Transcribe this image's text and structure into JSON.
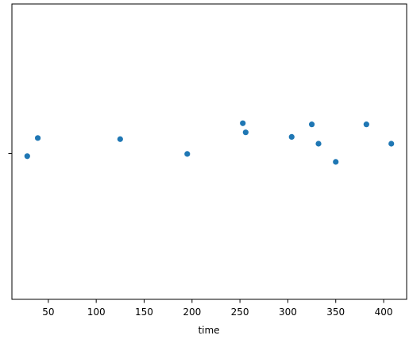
{
  "chart_data": {
    "type": "scatter",
    "title": "",
    "xlabel": "time",
    "ylabel": "",
    "xlim": [
      12,
      424
    ],
    "x_ticks": [
      50,
      100,
      150,
      200,
      250,
      300,
      350,
      400
    ],
    "grid": false,
    "legend": "none",
    "series": [
      {
        "color": "#1f77b4",
        "points": [
          {
            "x": 28,
            "y": -0.04
          },
          {
            "x": 39,
            "y": 0.12
          },
          {
            "x": 125,
            "y": 0.11
          },
          {
            "x": 195,
            "y": -0.02
          },
          {
            "x": 253,
            "y": 0.25
          },
          {
            "x": 256,
            "y": 0.17
          },
          {
            "x": 304,
            "y": 0.13
          },
          {
            "x": 325,
            "y": 0.24
          },
          {
            "x": 332,
            "y": 0.07
          },
          {
            "x": 350,
            "y": -0.09
          },
          {
            "x": 382,
            "y": 0.24
          },
          {
            "x": 408,
            "y": 0.07
          }
        ]
      }
    ],
    "ylim": [
      -1.3,
      1.3
    ]
  },
  "colors": {
    "point": "#1f77b4",
    "axes": "#000000"
  }
}
